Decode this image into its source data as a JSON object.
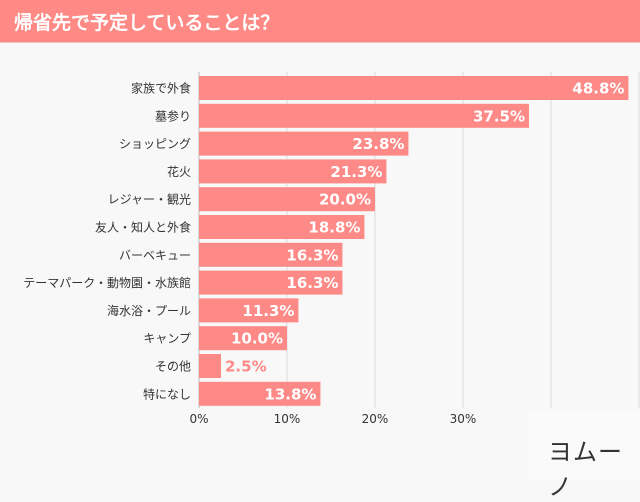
{
  "title": "帰省先で予定していることは？",
  "logo": "ヨムーノ",
  "colors": {
    "bar": "#fd8a87",
    "title_bar": "#ff8a85",
    "label_outside": "#fd8a87"
  },
  "chart_data": {
    "type": "bar",
    "orientation": "horizontal",
    "title": "帰省先で予定していることは？",
    "categories": [
      "家族で外食",
      "墓参り",
      "ショッピング",
      "花火",
      "レジャー・観光",
      "友人・知人と外食",
      "バーベキュー",
      "テーマパーク・動物園・水族館",
      "海水浴・プール",
      "キャンプ",
      "その他",
      "特になし"
    ],
    "values": [
      48.8,
      37.5,
      23.8,
      21.3,
      20.0,
      18.8,
      16.3,
      16.3,
      11.3,
      10.0,
      2.5,
      13.8
    ],
    "value_labels": [
      "48.8%",
      "37.5%",
      "23.8%",
      "21.3%",
      "20.0%",
      "18.8%",
      "16.3%",
      "16.3%",
      "11.3%",
      "10.0%",
      "2.5%",
      "13.8%"
    ],
    "xlim": [
      0,
      50
    ],
    "x_ticks": [
      "0%",
      "10%",
      "20%",
      "30%"
    ],
    "grid": true
  }
}
